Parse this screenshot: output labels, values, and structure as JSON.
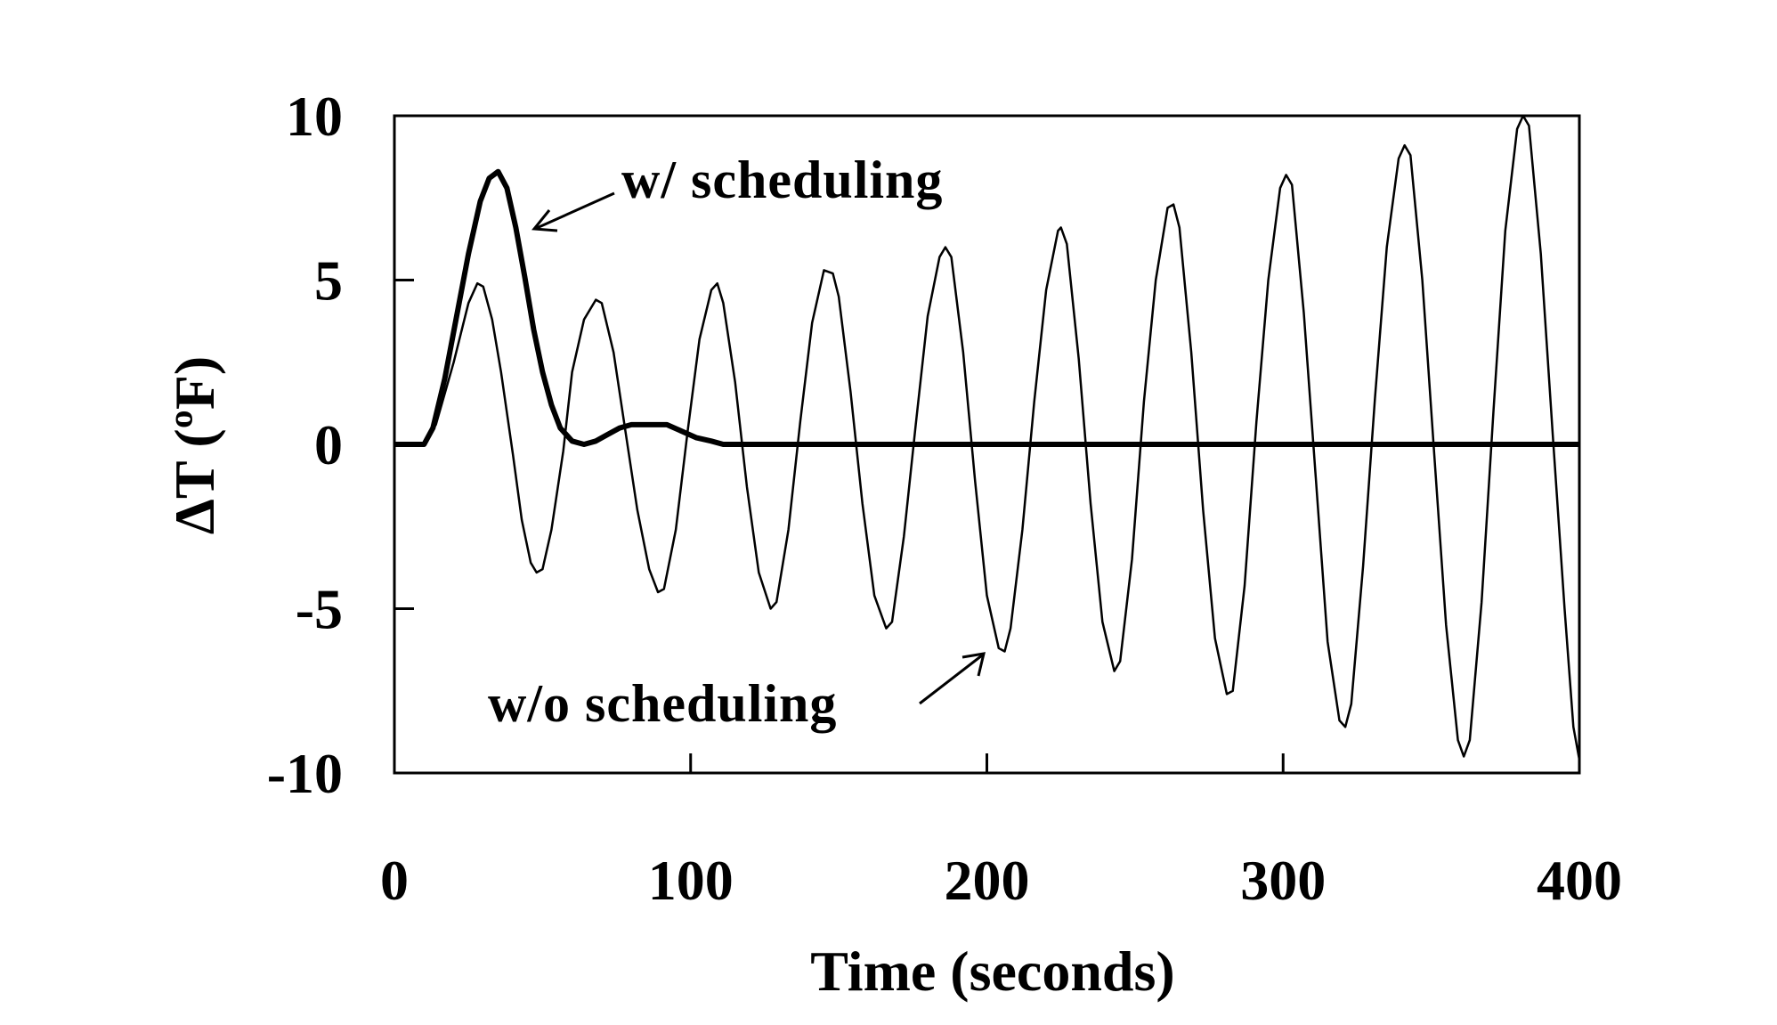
{
  "chart_data": {
    "type": "line",
    "title": "",
    "xlabel": "Time (seconds)",
    "ylabel": "ΔT (ºF)",
    "xlim": [
      0,
      400
    ],
    "ylim": [
      -10,
      10
    ],
    "x_ticks": [
      0,
      100,
      200,
      300,
      400
    ],
    "y_ticks": [
      10,
      5,
      0,
      -5,
      -10
    ],
    "x_tick_labels": [
      "0",
      "100",
      "200",
      "300",
      "400"
    ],
    "y_tick_labels": [
      "10",
      "5",
      "0",
      "-5",
      "-10"
    ],
    "grid": false,
    "legend": "none",
    "series": [
      {
        "name": "w/o scheduling",
        "stroke": "#000000",
        "points": [
          [
            0,
            0
          ],
          [
            10,
            0
          ],
          [
            14,
            0.6
          ],
          [
            20,
            2.5
          ],
          [
            25,
            4.3
          ],
          [
            28,
            4.9
          ],
          [
            30,
            4.8
          ],
          [
            33,
            3.8
          ],
          [
            36,
            2.2
          ],
          [
            40,
            -0.3
          ],
          [
            43,
            -2.3
          ],
          [
            46,
            -3.6
          ],
          [
            48,
            -3.9
          ],
          [
            50,
            -3.8
          ],
          [
            53,
            -2.6
          ],
          [
            57,
            -0.2
          ],
          [
            60,
            2.2
          ],
          [
            64,
            3.8
          ],
          [
            68,
            4.4
          ],
          [
            70,
            4.3
          ],
          [
            74,
            2.8
          ],
          [
            78,
            0.4
          ],
          [
            82,
            -2.0
          ],
          [
            86,
            -3.8
          ],
          [
            89,
            -4.5
          ],
          [
            91,
            -4.4
          ],
          [
            95,
            -2.6
          ],
          [
            99,
            0.4
          ],
          [
            103,
            3.2
          ],
          [
            107,
            4.7
          ],
          [
            109,
            4.9
          ],
          [
            111,
            4.3
          ],
          [
            115,
            1.9
          ],
          [
            119,
            -1.3
          ],
          [
            123,
            -3.9
          ],
          [
            127,
            -5.0
          ],
          [
            129,
            -4.8
          ],
          [
            133,
            -2.6
          ],
          [
            137,
            0.7
          ],
          [
            141,
            3.7
          ],
          [
            145,
            5.3
          ],
          [
            148,
            5.2
          ],
          [
            150,
            4.5
          ],
          [
            154,
            1.6
          ],
          [
            158,
            -1.8
          ],
          [
            162,
            -4.6
          ],
          [
            166,
            -5.6
          ],
          [
            168,
            -5.4
          ],
          [
            172,
            -2.8
          ],
          [
            176,
            0.6
          ],
          [
            180,
            3.9
          ],
          [
            184,
            5.7
          ],
          [
            186,
            6.0
          ],
          [
            188,
            5.7
          ],
          [
            192,
            2.8
          ],
          [
            196,
            -1.1
          ],
          [
            200,
            -4.6
          ],
          [
            204,
            -6.2
          ],
          [
            206,
            -6.3
          ],
          [
            208,
            -5.6
          ],
          [
            212,
            -2.6
          ],
          [
            216,
            1.3
          ],
          [
            220,
            4.7
          ],
          [
            224,
            6.5
          ],
          [
            225,
            6.6
          ],
          [
            227,
            6.1
          ],
          [
            231,
            2.6
          ],
          [
            235,
            -1.8
          ],
          [
            239,
            -5.4
          ],
          [
            243,
            -6.9
          ],
          [
            245,
            -6.6
          ],
          [
            249,
            -3.5
          ],
          [
            253,
            1.3
          ],
          [
            257,
            5.0
          ],
          [
            261,
            7.2
          ],
          [
            263,
            7.3
          ],
          [
            265,
            6.6
          ],
          [
            269,
            2.8
          ],
          [
            273,
            -2.0
          ],
          [
            277,
            -5.9
          ],
          [
            281,
            -7.6
          ],
          [
            283,
            -7.5
          ],
          [
            287,
            -4.3
          ],
          [
            291,
            0.7
          ],
          [
            295,
            5.0
          ],
          [
            299,
            7.8
          ],
          [
            301,
            8.2
          ],
          [
            303,
            7.9
          ],
          [
            307,
            4.0
          ],
          [
            311,
            -1.0
          ],
          [
            315,
            -6.0
          ],
          [
            319,
            -8.4
          ],
          [
            321,
            -8.6
          ],
          [
            323,
            -7.9
          ],
          [
            327,
            -3.7
          ],
          [
            331,
            1.4
          ],
          [
            335,
            6.0
          ],
          [
            339,
            8.7
          ],
          [
            341,
            9.1
          ],
          [
            343,
            8.8
          ],
          [
            347,
            5.0
          ],
          [
            351,
            -0.3
          ],
          [
            355,
            -5.5
          ],
          [
            359,
            -9.0
          ],
          [
            361,
            -9.5
          ],
          [
            363,
            -9.0
          ],
          [
            367,
            -4.8
          ],
          [
            371,
            1.0
          ],
          [
            375,
            6.5
          ],
          [
            379,
            9.6
          ],
          [
            381,
            10.0
          ],
          [
            383,
            9.7
          ],
          [
            387,
            5.8
          ],
          [
            391,
            0.3
          ],
          [
            395,
            -5.0
          ],
          [
            398,
            -8.6
          ],
          [
            400,
            -9.6
          ]
        ]
      },
      {
        "name": "w/ scheduling",
        "stroke": "#000000",
        "points": [
          [
            0,
            0
          ],
          [
            10,
            0
          ],
          [
            13,
            0.5
          ],
          [
            17,
            2.0
          ],
          [
            21,
            3.9
          ],
          [
            25,
            5.8
          ],
          [
            29,
            7.4
          ],
          [
            32,
            8.1
          ],
          [
            35,
            8.3
          ],
          [
            38,
            7.8
          ],
          [
            41,
            6.6
          ],
          [
            44,
            5.1
          ],
          [
            47,
            3.5
          ],
          [
            50,
            2.2
          ],
          [
            53,
            1.2
          ],
          [
            56,
            0.5
          ],
          [
            60,
            0.1
          ],
          [
            64,
            0
          ],
          [
            68,
            0.1
          ],
          [
            72,
            0.3
          ],
          [
            76,
            0.5
          ],
          [
            80,
            0.6
          ],
          [
            86,
            0.6
          ],
          [
            92,
            0.6
          ],
          [
            97,
            0.4
          ],
          [
            102,
            0.2
          ],
          [
            107,
            0.1
          ],
          [
            111,
            0
          ],
          [
            400,
            0
          ]
        ]
      }
    ],
    "annotations": [
      {
        "text": "w/ scheduling",
        "target_series": "w/ scheduling",
        "target": [
          46,
          6.5
        ]
      },
      {
        "text": "w/o scheduling",
        "target_series": "w/o scheduling",
        "target": [
          198,
          -6.3
        ]
      }
    ]
  }
}
